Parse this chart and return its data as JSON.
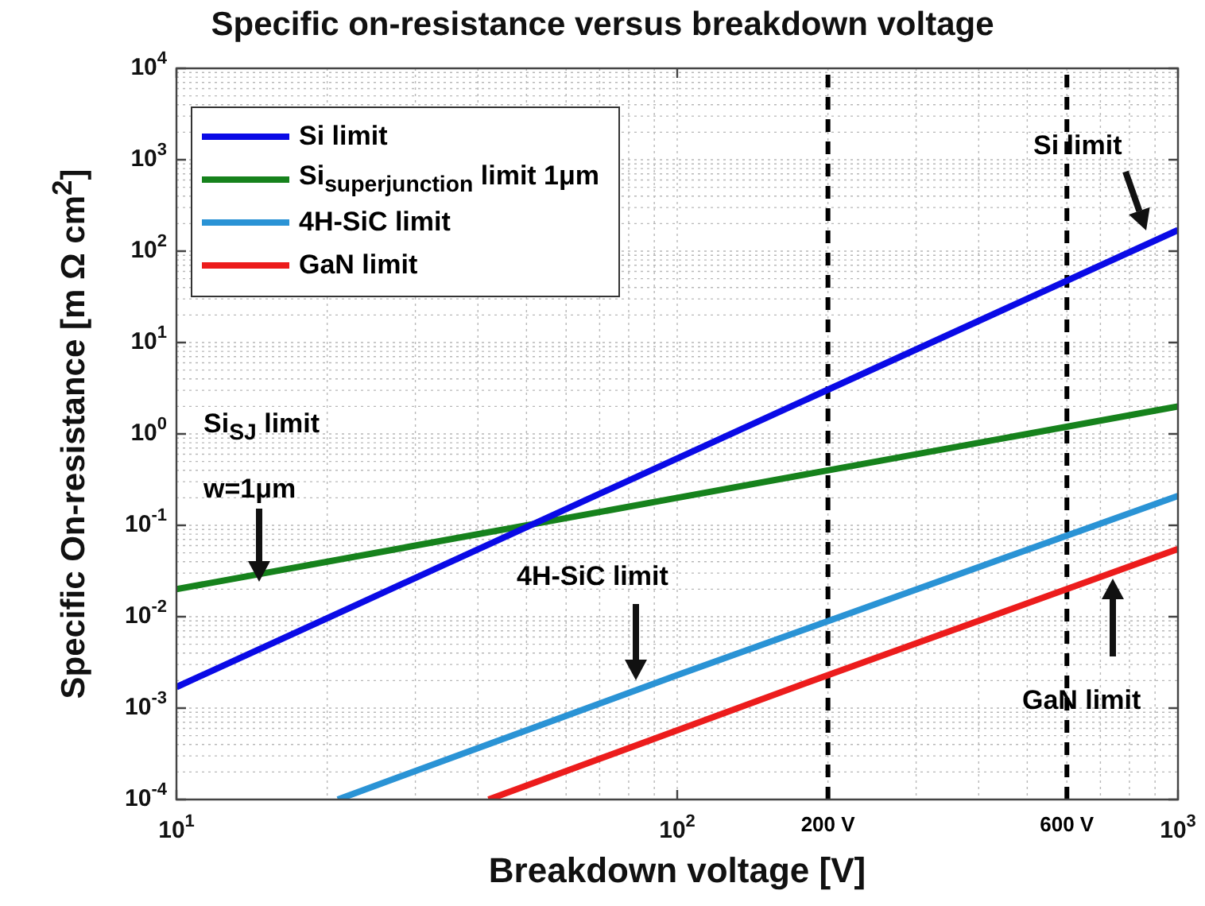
{
  "chart_data": {
    "type": "line",
    "title": "Specific on-resistance versus breakdown voltage",
    "xlabel": "Breakdown voltage [V]",
    "ylabel": "Specific On-resistance [m Ω cm$^{2}$]",
    "log": "xy",
    "grid": true,
    "legend": "top left",
    "line_style": "solid",
    "marker": "none",
    "xlim": [
      10,
      1000
    ],
    "ylim": [
      0.0001,
      10000
    ],
    "xticks": [
      {
        "value": 10,
        "label": "10$^{1}$"
      },
      {
        "value": 100,
        "label": "10$^{2}$"
      },
      {
        "value": 1000,
        "label": "10$^{3}$"
      }
    ],
    "yticks": [
      {
        "value": 0.0001,
        "label": "10$^{-4}$"
      },
      {
        "value": 0.001,
        "label": "10$^{-3}$"
      },
      {
        "value": 0.01,
        "label": "10$^{-2}$"
      },
      {
        "value": 0.1,
        "label": "10$^{-1}$"
      },
      {
        "value": 1,
        "label": "10$^{0}$"
      },
      {
        "value": 10,
        "label": "10$^{1}$"
      },
      {
        "value": 100,
        "label": "10$^{2}$"
      },
      {
        "value": 1000,
        "label": "10$^{3}$"
      },
      {
        "value": 10000,
        "label": "10$^{4}$"
      }
    ],
    "series": [
      {
        "name": "Si limit",
        "color": "#0a0ae6",
        "x": [
          10,
          100,
          1000
        ],
        "values": [
          0.0017,
          0.54,
          170
        ]
      },
      {
        "name": "Si$_{superjunction}$ limit 1μm",
        "color": "#16821c",
        "x": [
          10,
          100,
          1000
        ],
        "values": [
          0.02,
          0.2,
          2
        ]
      },
      {
        "name": "4H-SiC limit",
        "color": "#2a93d5",
        "x": [
          21,
          100,
          1000
        ],
        "values": [
          0.0001,
          0.0023,
          0.21
        ]
      },
      {
        "name": "GaN limit",
        "color": "#ec1c1c",
        "x": [
          42,
          200,
          1000
        ],
        "values": [
          0.0001,
          0.0023,
          0.055
        ]
      }
    ],
    "ref_lines": [
      {
        "axis": "x",
        "value": 200,
        "label": "200 V",
        "color": "#000000",
        "line_style": "dashed"
      },
      {
        "axis": "x",
        "value": 600,
        "label": "600 V",
        "color": "#000000",
        "line_style": "dashed"
      }
    ],
    "annotations": [
      "Si limit",
      "Si$_{SJ}$ limit\nw=1μm",
      "4H-SiC limit",
      "GaN limit"
    ]
  }
}
